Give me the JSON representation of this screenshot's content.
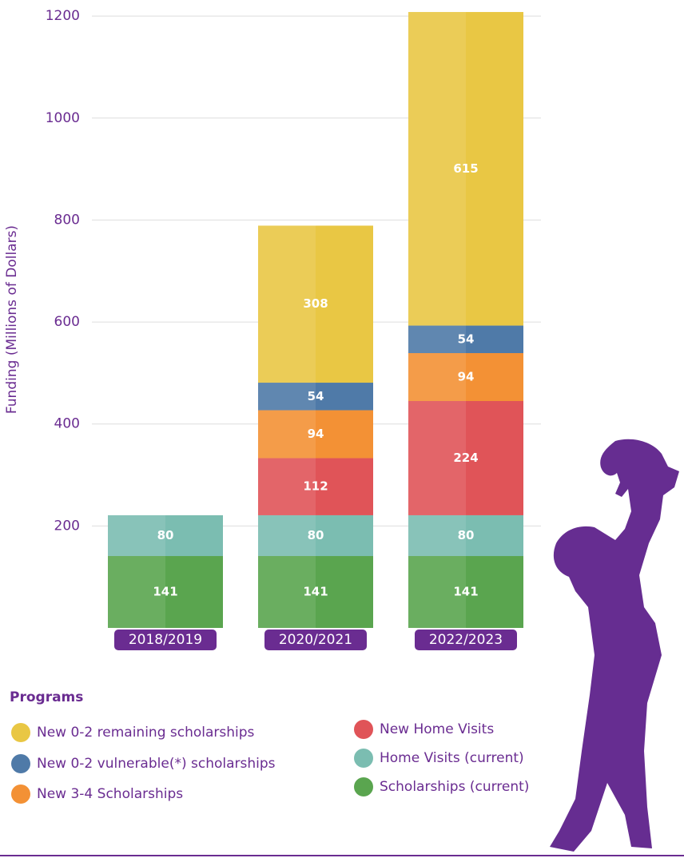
{
  "chart_data": {
    "type": "stacked_bar",
    "y_label": "Funding (Millions of Dollars)",
    "categories": [
      "2018/2019",
      "2020/2021",
      "2022/2023"
    ],
    "series": [
      {
        "name": "Scholarships (current)",
        "color": "#5aa54f",
        "values": [
          141,
          141,
          141
        ]
      },
      {
        "name": "Home Visits (current)",
        "color": "#7bbdb1",
        "values": [
          80,
          80,
          80
        ]
      },
      {
        "name": "New Home Visits",
        "color": "#e05458",
        "values": [
          null,
          112,
          224
        ]
      },
      {
        "name": "New 3-4 Scholarships",
        "color": "#f39135",
        "values": [
          null,
          94,
          94
        ]
      },
      {
        "name": "New 0-2 vulnerable(*) scholarships",
        "color": "#4f7aa8",
        "values": [
          null,
          54,
          54
        ]
      },
      {
        "name": "New 0-2 remaining scholarships",
        "color": "#e9c744",
        "values": [
          null,
          308,
          615
        ]
      }
    ],
    "ylim": [
      0,
      1230
    ],
    "yticks": [
      200,
      400,
      600,
      800,
      1000,
      1200
    ],
    "grid": true,
    "legend_title": "Programs"
  }
}
